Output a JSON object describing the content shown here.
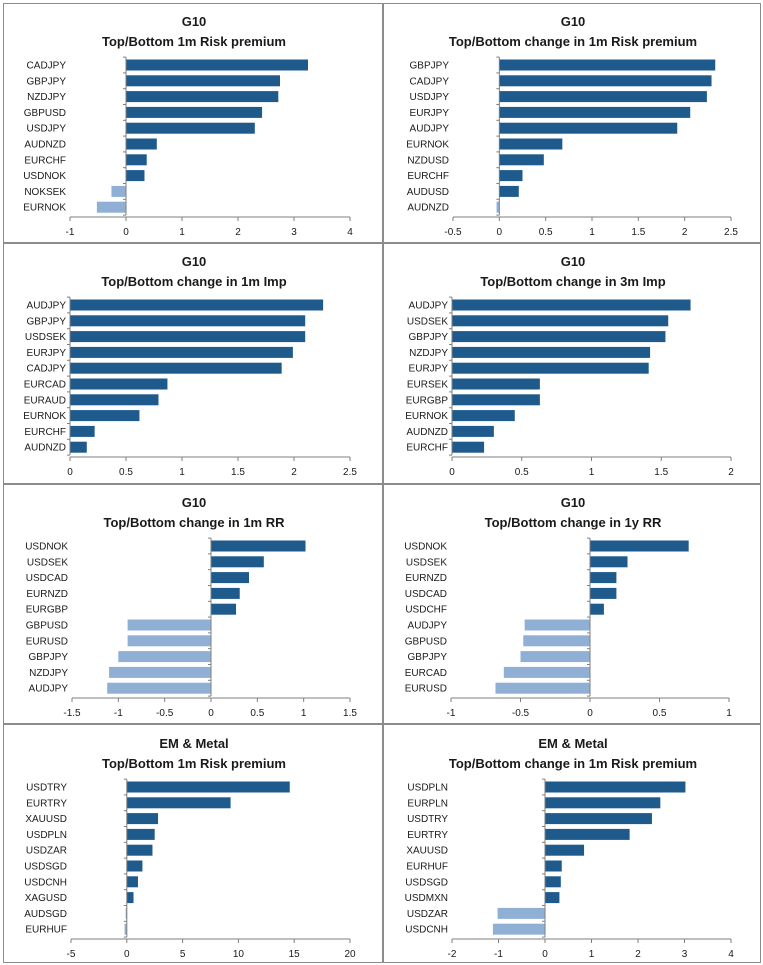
{
  "colors": {
    "positive": "#1f5a8c",
    "negative": "#8fb0d4",
    "axis": "#7f7f7f"
  },
  "charts": [
    {
      "chart_data": {
        "type": "bar",
        "orientation": "horizontal",
        "title": "G10",
        "subtitle": "Top/Bottom 1m Risk premium",
        "categories": [
          "CADJPY",
          "GBPJPY",
          "NZDJPY",
          "GBPUSD",
          "USDJPY",
          "AUDNZD",
          "EURCHF",
          "USDNOK",
          "NOKSEK",
          "EURNOK"
        ],
        "values": [
          3.25,
          2.75,
          2.72,
          2.43,
          2.3,
          0.55,
          0.37,
          0.33,
          -0.26,
          -0.52
        ],
        "xlim": [
          -1,
          4
        ],
        "xticks": [
          "-1",
          "0",
          "1",
          "2",
          "3",
          "4"
        ]
      }
    },
    {
      "chart_data": {
        "type": "bar",
        "orientation": "horizontal",
        "title": "G10",
        "subtitle": "Top/Bottom change in 1m Risk premium",
        "categories": [
          "GBPJPY",
          "CADJPY",
          "USDJPY",
          "EURJPY",
          "AUDJPY",
          "EURNOK",
          "NZDUSD",
          "EURCHF",
          "AUDUSD",
          "AUDNZD"
        ],
        "values": [
          2.33,
          2.29,
          2.24,
          2.06,
          1.92,
          0.68,
          0.48,
          0.25,
          0.21,
          -0.03
        ],
        "xlim": [
          -0.5,
          2.5
        ],
        "xticks": [
          "-0.5",
          "0",
          "0.5",
          "1",
          "1.5",
          "2",
          "2.5"
        ]
      }
    },
    {
      "chart_data": {
        "type": "bar",
        "orientation": "horizontal",
        "title": "G10",
        "subtitle": "Top/Bottom change in 1m Imp",
        "categories": [
          "AUDJPY",
          "GBPJPY",
          "USDSEK",
          "EURJPY",
          "CADJPY",
          "EURCAD",
          "EURAUD",
          "EURNOK",
          "EURCHF",
          "AUDNZD"
        ],
        "values": [
          2.26,
          2.1,
          2.1,
          1.99,
          1.89,
          0.87,
          0.79,
          0.62,
          0.22,
          0.15
        ],
        "xlim": [
          0,
          2.5
        ],
        "xticks": [
          "0",
          "0.5",
          "1",
          "1.5",
          "2",
          "2.5"
        ]
      }
    },
    {
      "chart_data": {
        "type": "bar",
        "orientation": "horizontal",
        "title": "G10",
        "subtitle": "Top/Bottom change in 3m Imp",
        "categories": [
          "AUDJPY",
          "USDSEK",
          "GBPJPY",
          "NZDJPY",
          "EURJPY",
          "EURSEK",
          "EURGBP",
          "EURNOK",
          "AUDNZD",
          "EURCHF"
        ],
        "values": [
          1.71,
          1.55,
          1.53,
          1.42,
          1.41,
          0.63,
          0.63,
          0.45,
          0.3,
          0.23
        ],
        "xlim": [
          0,
          2
        ],
        "xticks": [
          "0",
          "0.5",
          "1",
          "1.5",
          "2"
        ]
      }
    },
    {
      "chart_data": {
        "type": "bar",
        "orientation": "horizontal",
        "title": "G10",
        "subtitle": "Top/Bottom change in 1m RR",
        "categories": [
          "USDNOK",
          "USDSEK",
          "USDCAD",
          "EURNZD",
          "EURGBP",
          "GBPUSD",
          "EURUSD",
          "GBPJPY",
          "NZDJPY",
          "AUDJPY"
        ],
        "values": [
          1.02,
          0.57,
          0.41,
          0.31,
          0.27,
          -0.9,
          -0.9,
          -1.0,
          -1.1,
          -1.12
        ],
        "xlim": [
          -1.5,
          1.5
        ],
        "xticks": [
          "-1.5",
          "-1",
          "-0.5",
          "0",
          "0.5",
          "1",
          "1.5"
        ]
      }
    },
    {
      "chart_data": {
        "type": "bar",
        "orientation": "horizontal",
        "title": "G10",
        "subtitle": "Top/Bottom change in 1y RR",
        "categories": [
          "USDNOK",
          "USDSEK",
          "EURNZD",
          "USDCAD",
          "USDCHF",
          "AUDJPY",
          "GBPUSD",
          "GBPJPY",
          "EURCAD",
          "EURUSD"
        ],
        "values": [
          0.71,
          0.27,
          0.19,
          0.19,
          0.1,
          -0.47,
          -0.48,
          -0.5,
          -0.62,
          -0.68
        ],
        "xlim": [
          -1,
          1
        ],
        "xticks": [
          "-1",
          "-0.5",
          "0",
          "0.5",
          "1"
        ]
      }
    },
    {
      "chart_data": {
        "type": "bar",
        "orientation": "horizontal",
        "title": "EM & Metal",
        "subtitle": "Top/Bottom 1m Risk premium",
        "categories": [
          "USDTRY",
          "EURTRY",
          "XAUUSD",
          "USDPLN",
          "USDZAR",
          "USDSGD",
          "USDCNH",
          "XAGUSD",
          "AUDSGD",
          "EURHUF"
        ],
        "values": [
          14.6,
          9.3,
          2.8,
          2.5,
          2.3,
          1.4,
          1.0,
          0.6,
          -0.1,
          -0.2
        ],
        "xlim": [
          -5,
          20
        ],
        "xticks": [
          "-5",
          "0",
          "5",
          "10",
          "15",
          "20"
        ]
      }
    },
    {
      "chart_data": {
        "type": "bar",
        "orientation": "horizontal",
        "title": "EM & Metal",
        "subtitle": "Top/Bottom change in 1m Risk premium",
        "categories": [
          "USDPLN",
          "EURPLN",
          "USDTRY",
          "EURTRY",
          "XAUUSD",
          "EURHUF",
          "USDSGD",
          "USDMXN",
          "USDZAR",
          "USDCNH"
        ],
        "values": [
          3.02,
          2.48,
          2.3,
          1.82,
          0.84,
          0.36,
          0.34,
          0.31,
          -1.02,
          -1.12
        ],
        "xlim": [
          -2,
          4
        ],
        "xticks": [
          "-2",
          "-1",
          "0",
          "1",
          "2",
          "3",
          "4"
        ]
      }
    }
  ]
}
